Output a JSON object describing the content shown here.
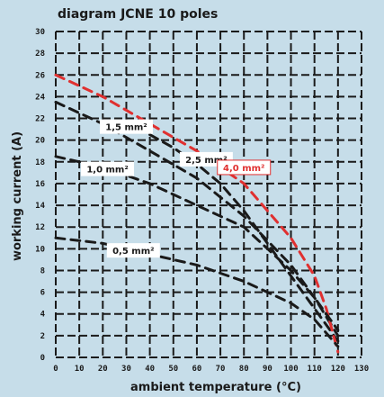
{
  "chart_data": {
    "type": "line",
    "title": "diagram JCNE 10 poles",
    "xlabel": "ambient temperature (°C)",
    "ylabel": "working current (A)",
    "xlim": [
      0,
      130
    ],
    "ylim": [
      0,
      30
    ],
    "x_ticks": [
      0,
      10,
      20,
      30,
      40,
      50,
      60,
      70,
      80,
      90,
      100,
      110,
      120,
      130
    ],
    "y_ticks": [
      0,
      2,
      4,
      6,
      8,
      10,
      12,
      14,
      16,
      18,
      20,
      22,
      24,
      26,
      28,
      30
    ],
    "grid": true,
    "series": [
      {
        "name": "1,5 mm²",
        "color": "#1a1a1a",
        "x": [
          0,
          20,
          40,
          60,
          80,
          100,
          110,
          120
        ],
        "y": [
          23.5,
          21.5,
          19.0,
          16.5,
          13.0,
          8.5,
          5.5,
          2.0
        ]
      },
      {
        "name": "2,5 mm²",
        "color": "#1a1a1a",
        "x": [
          40,
          50,
          60,
          70,
          80,
          90,
          100,
          110,
          120
        ],
        "y": [
          20.5,
          19.3,
          17.8,
          16.0,
          13.5,
          10.5,
          7.5,
          4.5,
          1.5
        ]
      },
      {
        "name": "4,0 mm²",
        "color": "#e03030",
        "x": [
          0,
          20,
          40,
          60,
          80,
          90,
          100,
          110,
          115,
          120
        ],
        "y": [
          26.0,
          24.0,
          21.5,
          19.0,
          16.0,
          13.5,
          11.0,
          7.5,
          4.5,
          0.5
        ]
      },
      {
        "name": "1,0 mm²",
        "color": "#1a1a1a",
        "x": [
          0,
          20,
          40,
          60,
          80,
          90,
          100,
          110,
          120
        ],
        "y": [
          18.5,
          17.5,
          16.0,
          14.0,
          12.0,
          10.0,
          8.0,
          5.5,
          2.5
        ]
      },
      {
        "name": "0,5 mm²",
        "color": "#1a1a1a",
        "x": [
          0,
          20,
          40,
          60,
          80,
          90,
          100,
          110,
          120
        ],
        "y": [
          11.0,
          10.5,
          9.5,
          8.5,
          7.0,
          6.0,
          5.0,
          3.5,
          1.0
        ]
      }
    ]
  }
}
